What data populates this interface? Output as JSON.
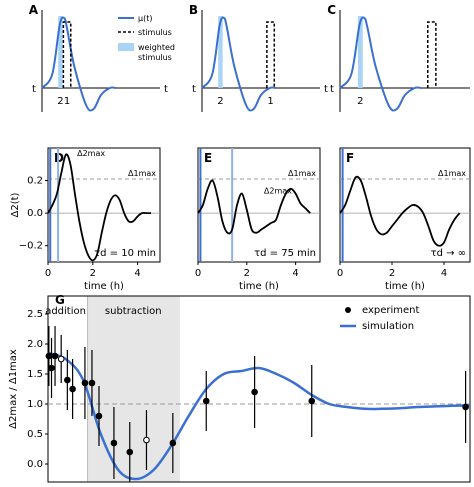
{
  "chart_data": [
    {
      "panel": "A",
      "type": "line",
      "axis_labels": {
        "t_left": "t",
        "t_right": "t"
      },
      "markers": {
        "weighted_label": "2",
        "stimulus_label": "1"
      },
      "legend": {
        "mu": "μ(t)",
        "stimulus": "stimulus",
        "weighted": "weighted stimulus",
        "placement": "top-right"
      },
      "series": [
        {
          "x": [
            0,
            0.7,
            1.2,
            1.5,
            1.7,
            2.2,
            3,
            3.5,
            4,
            4.6,
            5
          ],
          "values": [
            0,
            0.2,
            0.9,
            1.0,
            0.85,
            0.3,
            -0.25,
            -0.3,
            -0.1,
            0,
            0
          ]
        }
      ],
      "weighted_band": [
        1.1,
        1.4
      ],
      "stimulus_pulse": [
        1.45,
        1.95
      ],
      "color": "#3b6fd1"
    },
    {
      "panel": "B",
      "type": "line",
      "axis_labels": {
        "t_left": "t",
        "t_right": "t"
      },
      "markers": {
        "weighted_label": "2",
        "stimulus_label": "1"
      },
      "weighted_band": [
        1.1,
        1.4
      ],
      "stimulus_pulse": [
        4.4,
        4.9
      ]
    },
    {
      "panel": "C",
      "type": "line",
      "axis_labels": {
        "t_left": "t",
        "t_right": "t"
      },
      "markers": {
        "weighted_label": "2"
      },
      "weighted_band": [
        1.1,
        1.4
      ],
      "stimulus_pulse": [
        5.4,
        5.9
      ]
    },
    {
      "panel": "D",
      "type": "line",
      "ylabel": "Δ2(t)",
      "xlabel": "time (h)",
      "yticks": [
        "0.2",
        "0.0",
        "−0.2"
      ],
      "xticks": [
        "0",
        "2",
        "4"
      ],
      "xlim": [
        0,
        5
      ],
      "ylim": [
        -0.3,
        0.4
      ],
      "delta1_max": 0.21,
      "annotation": "τd = 10 min",
      "delta2_label": "Δ2max",
      "delta1_label": "Δ1max",
      "stim_lines": [
        0.1,
        0.45
      ],
      "series": [
        {
          "x": [
            0,
            0.2,
            0.4,
            0.6,
            0.8,
            1.0,
            1.2,
            1.4,
            1.6,
            1.8,
            2.0,
            2.2,
            2.4,
            2.6,
            2.8,
            3.0,
            3.2,
            3.4,
            3.6,
            3.8,
            4.0,
            4.2,
            4.4,
            4.6
          ],
          "values": [
            0,
            0.05,
            0.12,
            0.25,
            0.36,
            0.3,
            0.12,
            -0.05,
            -0.18,
            -0.26,
            -0.29,
            -0.25,
            -0.12,
            0.0,
            0.08,
            0.11,
            0.08,
            0.0,
            -0.05,
            -0.05,
            -0.02,
            0.0,
            0.0,
            0.0
          ]
        }
      ]
    },
    {
      "panel": "E",
      "type": "line",
      "xlabel": "time (h)",
      "xticks": [
        "0",
        "2",
        "4"
      ],
      "xlim": [
        0,
        5
      ],
      "ylim": [
        -0.3,
        0.4
      ],
      "delta1_max": 0.21,
      "annotation": "τd = 75 min",
      "delta2_label": "Δ2max",
      "delta1_label": "Δ1max",
      "stim_lines": [
        0.1,
        1.4
      ],
      "series": [
        {
          "x": [
            0,
            0.2,
            0.4,
            0.6,
            0.8,
            1.0,
            1.2,
            1.4,
            1.6,
            1.8,
            2.0,
            2.2,
            2.4,
            2.6,
            2.8,
            3.0,
            3.2,
            3.4,
            3.6,
            3.8,
            4.0,
            4.2,
            4.4,
            4.6
          ],
          "values": [
            0,
            0.05,
            0.15,
            0.2,
            0.1,
            -0.05,
            -0.12,
            -0.1,
            0.05,
            0.12,
            0.02,
            -0.1,
            -0.12,
            -0.1,
            -0.08,
            -0.06,
            -0.04,
            0.05,
            0.12,
            0.15,
            0.12,
            0.06,
            0.03,
            0.0
          ]
        }
      ]
    },
    {
      "panel": "F",
      "type": "line",
      "xlabel": "time (h)",
      "xticks": [
        "0",
        "2",
        "4"
      ],
      "xlim": [
        0,
        5
      ],
      "ylim": [
        -0.3,
        0.4
      ],
      "delta1_max": 0.21,
      "annotation": "τd → ∞",
      "delta1_label": "Δ1max",
      "stim_lines": [
        0.1
      ],
      "series": [
        {
          "x": [
            0,
            0.2,
            0.4,
            0.6,
            0.8,
            1.0,
            1.2,
            1.4,
            1.6,
            1.8,
            2.0,
            2.2,
            2.4,
            2.6,
            2.8,
            3.0,
            3.2,
            3.4,
            3.6,
            3.8,
            4.0,
            4.2,
            4.4,
            4.6
          ],
          "values": [
            0,
            0.05,
            0.14,
            0.22,
            0.2,
            0.1,
            -0.02,
            -0.1,
            -0.13,
            -0.12,
            -0.08,
            -0.04,
            0.0,
            0.03,
            0.05,
            0.04,
            0.0,
            -0.08,
            -0.17,
            -0.2,
            -0.18,
            -0.1,
            -0.04,
            0.0
          ]
        }
      ]
    },
    {
      "panel": "G",
      "type": "scatter",
      "ylabel": "Δ2max / Δ1max",
      "yticks": [
        "0.0",
        "0.5",
        "1.0",
        "1.5",
        "2.0",
        "2.5"
      ],
      "ylim": [
        -0.3,
        2.8
      ],
      "xlim": [
        0,
        48
      ],
      "reference_line": 1.0,
      "regions": [
        {
          "label": "addition",
          "x": [
            0,
            4.5
          ],
          "shaded": false
        },
        {
          "label": "subtraction",
          "x": [
            4.5,
            15
          ],
          "shaded": true
        }
      ],
      "legend": {
        "experiment": "experiment",
        "simulation": "simulation",
        "placement": "top-right"
      },
      "experiment": [
        {
          "x": 0.1,
          "y": 1.8,
          "err": 0.5
        },
        {
          "x": 0.4,
          "y": 1.6,
          "err": 0.5
        },
        {
          "x": 0.8,
          "y": 1.8,
          "err": 0.5
        },
        {
          "x": 1.5,
          "y": 1.75,
          "err": 0.4,
          "open": true
        },
        {
          "x": 2.2,
          "y": 1.4,
          "err": 0.5
        },
        {
          "x": 2.8,
          "y": 1.25,
          "err": 0.5
        },
        {
          "x": 4.2,
          "y": 1.35,
          "err": 0.6
        },
        {
          "x": 5.0,
          "y": 1.35,
          "err": 0.55
        },
        {
          "x": 5.8,
          "y": 0.8,
          "err": 0.5
        },
        {
          "x": 7.5,
          "y": 0.35,
          "err": 0.6
        },
        {
          "x": 9.3,
          "y": 0.2,
          "err": 0.5
        },
        {
          "x": 11.2,
          "y": 0.4,
          "err": 0.5,
          "open": true
        },
        {
          "x": 14.2,
          "y": 0.35,
          "err": 0.5
        },
        {
          "x": 18.0,
          "y": 1.05,
          "err": 0.5
        },
        {
          "x": 23.5,
          "y": 1.2,
          "err": 0.6
        },
        {
          "x": 30.0,
          "y": 1.05,
          "err": 0.6
        },
        {
          "x": 47.5,
          "y": 0.95,
          "err": 0.6
        }
      ],
      "simulation": {
        "x": [
          0,
          2,
          4,
          6,
          8,
          10,
          12,
          14,
          16,
          18,
          20,
          22,
          24,
          26,
          28,
          30,
          32,
          34,
          36,
          38,
          40,
          42,
          44,
          46,
          48
        ],
        "values": [
          1.85,
          1.75,
          1.4,
          0.5,
          -0.1,
          -0.25,
          -0.1,
          0.3,
          0.8,
          1.25,
          1.5,
          1.55,
          1.6,
          1.5,
          1.35,
          1.15,
          1.0,
          0.95,
          0.92,
          0.92,
          0.93,
          0.95,
          0.96,
          0.97,
          0.98
        ]
      }
    }
  ]
}
